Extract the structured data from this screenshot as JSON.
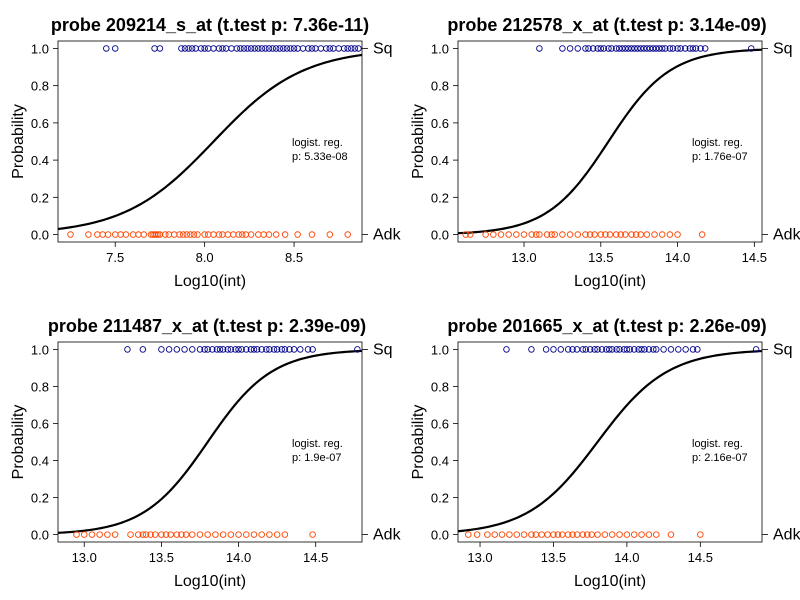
{
  "chart_data": [
    {
      "type": "scatter",
      "title": "probe 209214_s_at (t.test p: 7.36e-11)",
      "xlabel": "Log10(int)",
      "ylabel": "Probability",
      "xlim": [
        7.18,
        8.88
      ],
      "ylim": [
        -0.04,
        1.04
      ],
      "xticks": [
        7.5,
        8.0,
        8.5
      ],
      "xtick_labels": [
        "7.5",
        "8.0",
        "8.5"
      ],
      "yticks": [
        0.0,
        0.2,
        0.4,
        0.6,
        0.8,
        1.0
      ],
      "ytick_labels": [
        "0.0",
        "0.2",
        "0.4",
        "0.6",
        "0.8",
        "1.0"
      ],
      "right_axis_labels": {
        "top": "Sq",
        "bottom": "Adk"
      },
      "annotation": [
        "logist. reg.",
        "p: 5.33e-08"
      ],
      "series": [
        {
          "name": "Sq",
          "y": 1,
          "color": "#00008B",
          "x": [
            7.45,
            7.5,
            7.72,
            7.75,
            7.87,
            7.89,
            7.91,
            7.93,
            7.95,
            7.98,
            8.0,
            8.02,
            8.05,
            8.08,
            8.1,
            8.12,
            8.15,
            8.18,
            8.2,
            8.22,
            8.24,
            8.26,
            8.28,
            8.3,
            8.32,
            8.34,
            8.36,
            8.38,
            8.4,
            8.42,
            8.44,
            8.46,
            8.48,
            8.5,
            8.52,
            8.55,
            8.58,
            8.6,
            8.62,
            8.65,
            8.68,
            8.7,
            8.72,
            8.75,
            8.78,
            8.8,
            8.82,
            8.84,
            8.86
          ]
        },
        {
          "name": "Adk",
          "y": 0,
          "color": "#FF4500",
          "x": [
            7.25,
            7.35,
            7.4,
            7.43,
            7.46,
            7.5,
            7.53,
            7.56,
            7.6,
            7.63,
            7.66,
            7.7,
            7.71,
            7.72,
            7.73,
            7.74,
            7.75,
            7.78,
            7.8,
            7.83,
            7.86,
            7.88,
            7.9,
            7.92,
            7.94,
            7.96,
            8.0,
            8.02,
            8.05,
            8.08,
            8.1,
            8.13,
            8.16,
            8.19,
            8.21,
            8.23,
            8.26,
            8.3,
            8.33,
            8.36,
            8.4,
            8.45,
            8.52,
            8.6,
            8.7,
            8.8
          ]
        }
      ],
      "fit": {
        "type": "logistic",
        "x0": 8.05,
        "k": 4.0
      }
    },
    {
      "type": "scatter",
      "title": "probe 212578_x_at (t.test p: 3.14e-09)",
      "xlabel": "Log10(int)",
      "ylabel": "Probability",
      "xlim": [
        12.57,
        14.55
      ],
      "ylim": [
        -0.04,
        1.04
      ],
      "xticks": [
        13.0,
        13.5,
        14.0,
        14.5
      ],
      "xtick_labels": [
        "13.0",
        "13.5",
        "14.0",
        "14.5"
      ],
      "yticks": [
        0.0,
        0.2,
        0.4,
        0.6,
        0.8,
        1.0
      ],
      "ytick_labels": [
        "0.0",
        "0.2",
        "0.4",
        "0.6",
        "0.8",
        "1.0"
      ],
      "right_axis_labels": {
        "top": "Sq",
        "bottom": "Adk"
      },
      "annotation": [
        "logist. reg.",
        "p: 1.76e-07"
      ],
      "series": [
        {
          "name": "Sq",
          "y": 1,
          "color": "#00008B",
          "x": [
            13.1,
            13.25,
            13.3,
            13.35,
            13.4,
            13.42,
            13.45,
            13.48,
            13.5,
            13.52,
            13.55,
            13.57,
            13.6,
            13.62,
            13.64,
            13.66,
            13.68,
            13.7,
            13.72,
            13.74,
            13.76,
            13.78,
            13.8,
            13.82,
            13.84,
            13.86,
            13.88,
            13.9,
            13.92,
            13.95,
            13.97,
            14.0,
            14.02,
            14.05,
            14.08,
            14.1,
            14.12,
            14.15,
            14.18,
            14.48
          ]
        },
        {
          "name": "Adk",
          "y": 0,
          "color": "#FF4500",
          "x": [
            12.62,
            12.65,
            12.75,
            12.8,
            12.85,
            12.9,
            12.95,
            13.0,
            13.05,
            13.08,
            13.1,
            13.15,
            13.18,
            13.2,
            13.25,
            13.3,
            13.35,
            13.4,
            13.43,
            13.46,
            13.5,
            13.53,
            13.56,
            13.6,
            13.63,
            13.66,
            13.7,
            13.73,
            13.76,
            13.8,
            13.85,
            13.9,
            13.95,
            14.0,
            14.16
          ]
        }
      ],
      "fit": {
        "type": "logistic",
        "x0": 13.55,
        "k": 5.0
      }
    },
    {
      "type": "scatter",
      "title": "probe 211487_x_at (t.test p: 2.39e-09)",
      "xlabel": "Log10(int)",
      "ylabel": "Probability",
      "xlim": [
        12.83,
        14.8
      ],
      "ylim": [
        -0.04,
        1.04
      ],
      "xticks": [
        13.0,
        13.5,
        14.0,
        14.5
      ],
      "xtick_labels": [
        "13.0",
        "13.5",
        "14.0",
        "14.5"
      ],
      "yticks": [
        0.0,
        0.2,
        0.4,
        0.6,
        0.8,
        1.0
      ],
      "ytick_labels": [
        "0.0",
        "0.2",
        "0.4",
        "0.6",
        "0.8",
        "1.0"
      ],
      "right_axis_labels": {
        "top": "Sq",
        "bottom": "Adk"
      },
      "annotation": [
        "logist. reg.",
        "p: 1.9e-07"
      ],
      "series": [
        {
          "name": "Sq",
          "y": 1,
          "color": "#00008B",
          "x": [
            13.28,
            13.38,
            13.5,
            13.55,
            13.6,
            13.65,
            13.7,
            13.75,
            13.78,
            13.8,
            13.83,
            13.86,
            13.88,
            13.9,
            13.93,
            13.95,
            13.98,
            14.0,
            14.02,
            14.05,
            14.08,
            14.1,
            14.12,
            14.15,
            14.18,
            14.2,
            14.23,
            14.25,
            14.28,
            14.3,
            14.33,
            14.36,
            14.4,
            14.45,
            14.48,
            14.77
          ]
        },
        {
          "name": "Adk",
          "y": 0,
          "color": "#FF4500",
          "x": [
            12.95,
            13.0,
            13.05,
            13.1,
            13.15,
            13.2,
            13.3,
            13.35,
            13.38,
            13.4,
            13.43,
            13.46,
            13.5,
            13.53,
            13.56,
            13.6,
            13.63,
            13.66,
            13.7,
            13.75,
            13.8,
            13.85,
            13.9,
            13.95,
            14.0,
            14.05,
            14.1,
            14.15,
            14.2,
            14.25,
            14.3,
            14.48
          ]
        }
      ],
      "fit": {
        "type": "logistic",
        "x0": 13.8,
        "k": 4.8
      }
    },
    {
      "type": "scatter",
      "title": "probe 201665_x_at (t.test p: 2.26e-09)",
      "xlabel": "Log10(int)",
      "ylabel": "Probability",
      "xlim": [
        12.85,
        14.92
      ],
      "ylim": [
        -0.04,
        1.04
      ],
      "xticks": [
        13.0,
        13.5,
        14.0,
        14.5
      ],
      "xtick_labels": [
        "13.0",
        "13.5",
        "14.0",
        "14.5"
      ],
      "yticks": [
        0.0,
        0.2,
        0.4,
        0.6,
        0.8,
        1.0
      ],
      "ytick_labels": [
        "0.0",
        "0.2",
        "0.4",
        "0.6",
        "0.8",
        "1.0"
      ],
      "right_axis_labels": {
        "top": "Sq",
        "bottom": "Adk"
      },
      "annotation": [
        "logist. reg.",
        "p: 2.16e-07"
      ],
      "series": [
        {
          "name": "Sq",
          "y": 1,
          "color": "#00008B",
          "x": [
            13.18,
            13.35,
            13.45,
            13.5,
            13.55,
            13.6,
            13.63,
            13.66,
            13.7,
            13.72,
            13.75,
            13.78,
            13.8,
            13.83,
            13.86,
            13.88,
            13.9,
            13.93,
            13.95,
            13.98,
            14.0,
            14.02,
            14.05,
            14.08,
            14.1,
            14.12,
            14.15,
            14.18,
            14.2,
            14.25,
            14.3,
            14.35,
            14.4,
            14.45,
            14.48,
            14.88
          ]
        },
        {
          "name": "Adk",
          "y": 0,
          "color": "#FF4500",
          "x": [
            12.92,
            12.98,
            13.05,
            13.1,
            13.15,
            13.2,
            13.25,
            13.3,
            13.35,
            13.38,
            13.42,
            13.46,
            13.5,
            13.53,
            13.56,
            13.6,
            13.63,
            13.66,
            13.7,
            13.73,
            13.76,
            13.8,
            13.85,
            13.9,
            13.95,
            14.0,
            14.05,
            14.1,
            14.15,
            14.2,
            14.3,
            14.5
          ]
        }
      ],
      "fit": {
        "type": "logistic",
        "x0": 13.8,
        "k": 4.2
      }
    }
  ]
}
